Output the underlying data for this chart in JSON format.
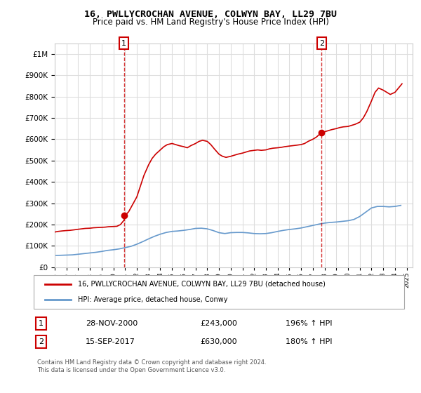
{
  "title": "16, PWLLYCROCHAN AVENUE, COLWYN BAY, LL29 7BU",
  "subtitle": "Price paid vs. HM Land Registry's House Price Index (HPI)",
  "legend_line1": "16, PWLLYCROCHAN AVENUE, COLWYN BAY, LL29 7BU (detached house)",
  "legend_line2": "HPI: Average price, detached house, Conwy",
  "footer_line1": "Contains HM Land Registry data © Crown copyright and database right 2024.",
  "footer_line2": "This data is licensed under the Open Government Licence v3.0.",
  "annotation1_label": "1",
  "annotation1_date": "28-NOV-2000",
  "annotation1_price": "£243,000",
  "annotation1_hpi": "196% ↑ HPI",
  "annotation2_label": "2",
  "annotation2_date": "15-SEP-2017",
  "annotation2_price": "£630,000",
  "annotation2_hpi": "180% ↑ HPI",
  "red_line_color": "#cc0000",
  "blue_line_color": "#6699cc",
  "marker_color": "#cc0000",
  "grid_color": "#dddddd",
  "background_color": "#ffffff",
  "ylim": [
    0,
    1050000
  ],
  "xlim_start": 1995.0,
  "xlim_end": 2025.5,
  "hpi_x": [
    1995.0,
    1995.5,
    1996.0,
    1996.5,
    1997.0,
    1997.5,
    1998.0,
    1998.5,
    1999.0,
    1999.5,
    2000.0,
    2000.5,
    2001.0,
    2001.5,
    2002.0,
    2002.5,
    2003.0,
    2003.5,
    2004.0,
    2004.5,
    2005.0,
    2005.5,
    2006.0,
    2006.5,
    2007.0,
    2007.5,
    2008.0,
    2008.5,
    2009.0,
    2009.5,
    2010.0,
    2010.5,
    2011.0,
    2011.5,
    2012.0,
    2012.5,
    2013.0,
    2013.5,
    2014.0,
    2014.5,
    2015.0,
    2015.5,
    2016.0,
    2016.5,
    2017.0,
    2017.5,
    2018.0,
    2018.5,
    2019.0,
    2019.5,
    2020.0,
    2020.5,
    2021.0,
    2021.5,
    2022.0,
    2022.5,
    2023.0,
    2023.5,
    2024.0,
    2024.5
  ],
  "hpi_y": [
    55000,
    56000,
    57000,
    58000,
    61000,
    64000,
    67000,
    70000,
    74000,
    79000,
    82000,
    86000,
    92000,
    98000,
    108000,
    120000,
    133000,
    145000,
    155000,
    163000,
    168000,
    170000,
    173000,
    177000,
    182000,
    183000,
    180000,
    172000,
    162000,
    158000,
    162000,
    163000,
    163000,
    161000,
    158000,
    157000,
    158000,
    162000,
    168000,
    173000,
    177000,
    180000,
    184000,
    190000,
    196000,
    202000,
    207000,
    210000,
    212000,
    215000,
    218000,
    224000,
    238000,
    258000,
    278000,
    285000,
    285000,
    283000,
    285000,
    290000
  ],
  "red_x": [
    1995.0,
    1995.3,
    1995.6,
    1996.0,
    1996.3,
    1996.6,
    1997.0,
    1997.3,
    1997.6,
    1998.0,
    1998.3,
    1998.6,
    1999.0,
    1999.3,
    1999.6,
    2000.0,
    2000.3,
    2000.6,
    2000.9,
    2001.0,
    2001.3,
    2001.6,
    2002.0,
    2002.3,
    2002.6,
    2003.0,
    2003.3,
    2003.6,
    2004.0,
    2004.3,
    2004.6,
    2005.0,
    2005.3,
    2005.6,
    2006.0,
    2006.3,
    2006.6,
    2007.0,
    2007.3,
    2007.6,
    2008.0,
    2008.3,
    2008.6,
    2009.0,
    2009.3,
    2009.6,
    2010.0,
    2010.3,
    2010.6,
    2011.0,
    2011.3,
    2011.6,
    2012.0,
    2012.3,
    2012.6,
    2013.0,
    2013.3,
    2013.6,
    2014.0,
    2014.3,
    2014.6,
    2015.0,
    2015.3,
    2015.6,
    2016.0,
    2016.3,
    2016.6,
    2017.0,
    2017.3,
    2017.6,
    2017.9,
    2018.0,
    2018.3,
    2018.6,
    2019.0,
    2019.3,
    2019.6,
    2020.0,
    2020.3,
    2020.6,
    2021.0,
    2021.3,
    2021.6,
    2022.0,
    2022.3,
    2022.6,
    2023.0,
    2023.3,
    2023.6,
    2024.0,
    2024.3,
    2024.6
  ],
  "red_y": [
    165000,
    168000,
    170000,
    172000,
    173000,
    175000,
    178000,
    180000,
    182000,
    183000,
    185000,
    186000,
    187000,
    188000,
    190000,
    191000,
    192000,
    200000,
    220000,
    243000,
    260000,
    290000,
    330000,
    380000,
    430000,
    480000,
    510000,
    530000,
    550000,
    565000,
    575000,
    580000,
    575000,
    570000,
    565000,
    560000,
    570000,
    580000,
    590000,
    595000,
    590000,
    575000,
    555000,
    530000,
    520000,
    515000,
    520000,
    525000,
    530000,
    535000,
    540000,
    545000,
    548000,
    550000,
    548000,
    550000,
    555000,
    558000,
    560000,
    562000,
    565000,
    568000,
    570000,
    572000,
    575000,
    580000,
    590000,
    600000,
    610000,
    625000,
    630000,
    635000,
    640000,
    645000,
    650000,
    655000,
    658000,
    660000,
    665000,
    670000,
    680000,
    700000,
    730000,
    780000,
    820000,
    840000,
    830000,
    820000,
    810000,
    820000,
    840000,
    860000
  ],
  "sale1_x": 2000.9,
  "sale1_y": 243000,
  "sale2_x": 2017.75,
  "sale2_y": 630000,
  "vline1_x": 2000.9,
  "vline2_x": 2017.75
}
